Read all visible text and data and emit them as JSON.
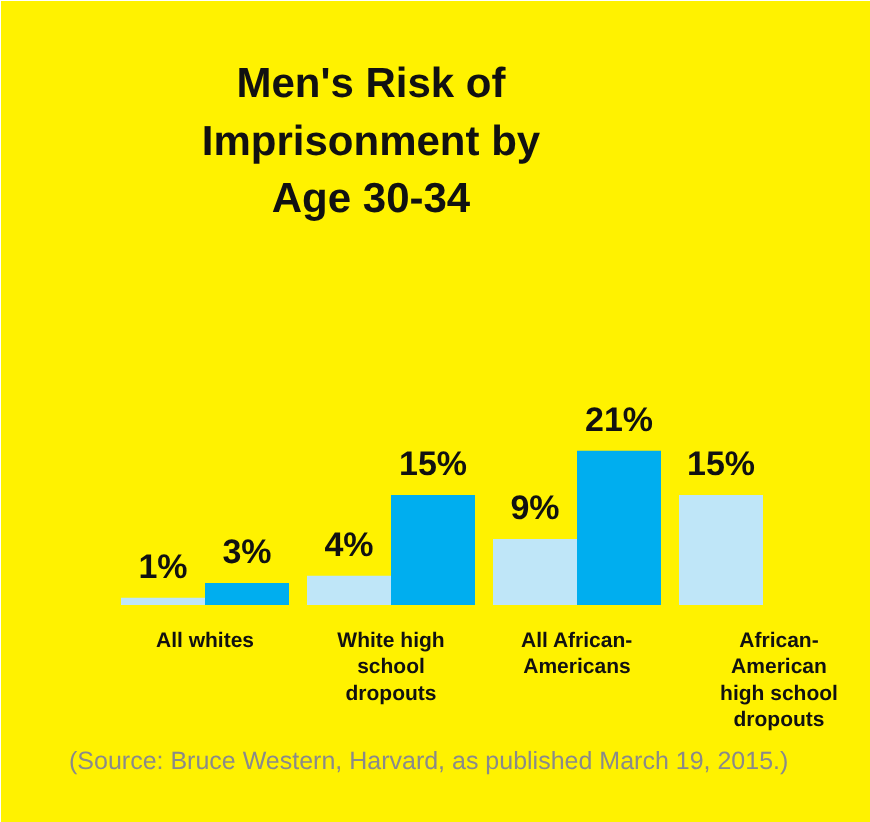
{
  "chart_data": {
    "type": "bar",
    "title": "Men's Risk of\nImprisonment by\nAge 30-34",
    "categories": [
      "All whites",
      "White high\nschool\ndropouts",
      "All African-\nAmericans",
      "African-\nAmerican\nhigh school\ndropouts"
    ],
    "series": [
      {
        "color": "#bfe6f8",
        "values": [
          1,
          4,
          9,
          15
        ],
        "value_labels": [
          "1%",
          "4%",
          "9%",
          "15%"
        ]
      },
      {
        "color": "#00aeef",
        "values": [
          3,
          15,
          21,
          null
        ],
        "value_labels": [
          "3%",
          "15%",
          "21%",
          null
        ]
      }
    ],
    "annotations": [
      "(Source: Bruce Western, Harvard, as published March 19, 2015.)"
    ],
    "grid": false
  }
}
